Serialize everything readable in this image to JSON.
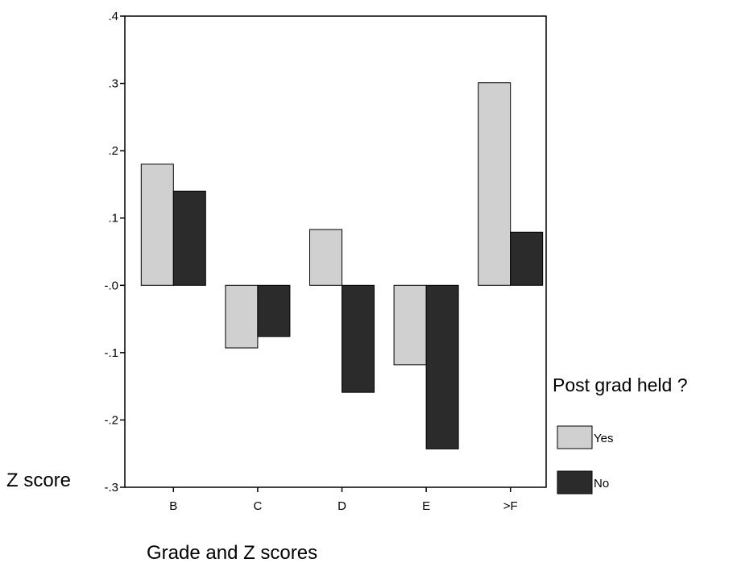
{
  "chart_data": {
    "type": "bar",
    "categories": [
      "B",
      "C",
      "D",
      "E",
      ">F"
    ],
    "series": [
      {
        "name": "Yes",
        "values": [
          0.18,
          -0.093,
          0.083,
          -0.118,
          0.301
        ],
        "color": "#d0d0d0"
      },
      {
        "name": "No",
        "values": [
          0.14,
          -0.076,
          -0.159,
          -0.243,
          0.079
        ],
        "color": "#2b2b2b"
      }
    ],
    "xlabel": "Grade and Z scores",
    "ylabel": "Z score",
    "ylim": [
      -0.3,
      0.4
    ],
    "yticks": [
      0.4,
      0.3,
      0.2,
      0.1,
      0.0,
      -0.1,
      -0.2,
      -0.3
    ],
    "ytick_labels": [
      ".4",
      ".3",
      ".2",
      ".1",
      "-.0",
      "-.1",
      "-.2",
      "-.3"
    ],
    "legend": {
      "title": "Post grad held ?",
      "entries": [
        "Yes",
        "No"
      ],
      "placement": "right"
    },
    "grid": false
  }
}
